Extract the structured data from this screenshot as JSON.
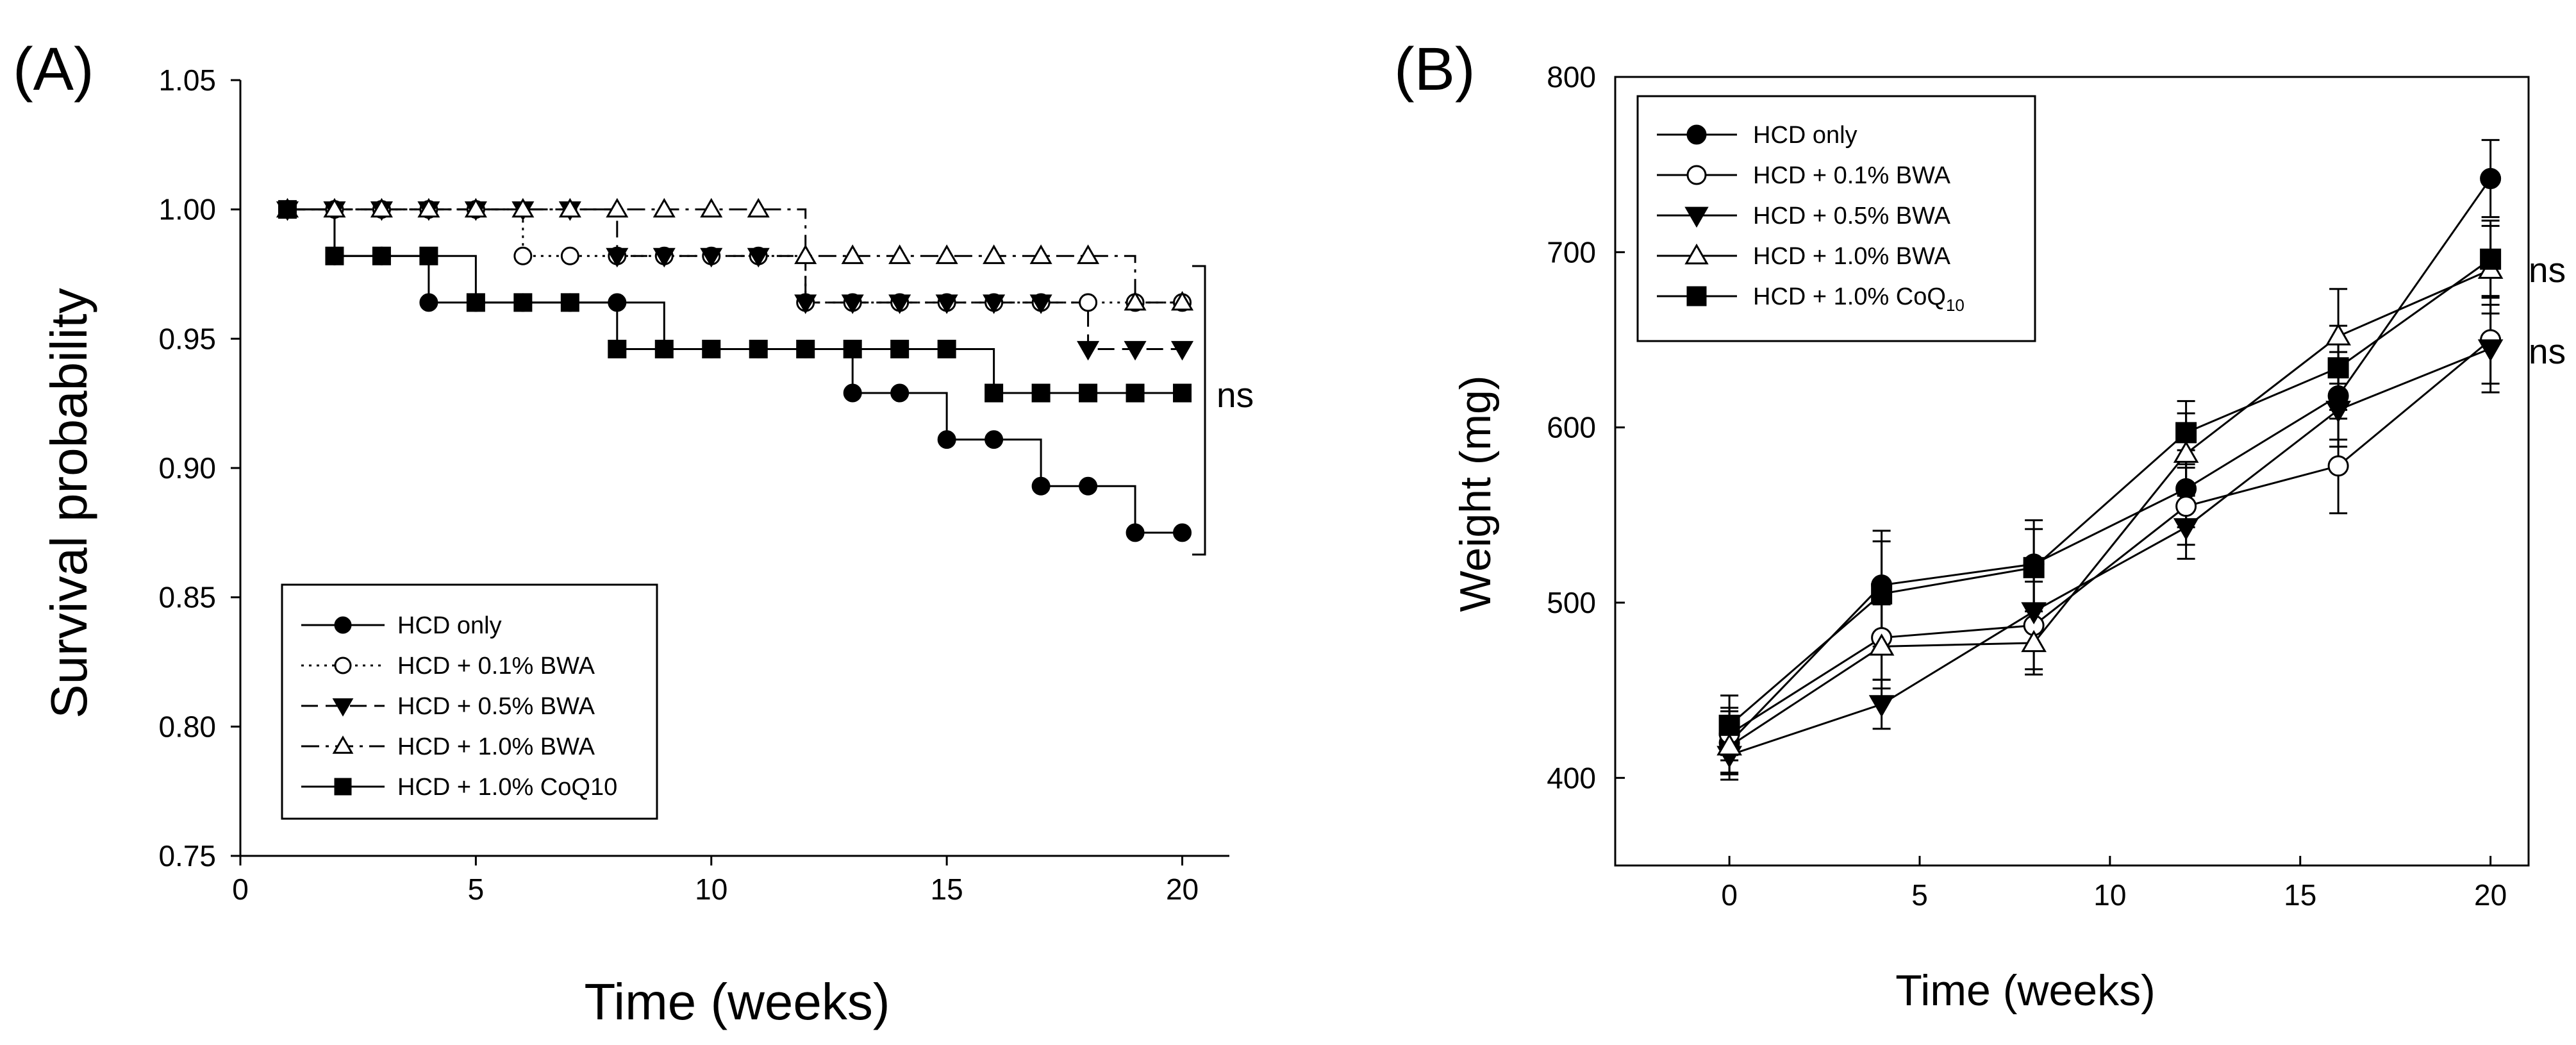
{
  "chart_data": [
    {
      "panel_label": "(A)",
      "type": "line",
      "step": true,
      "ylabel": "Survival probability",
      "xlabel": "Time (weeks)",
      "xlim": [
        0,
        21
      ],
      "ylim": [
        0.75,
        1.05
      ],
      "xticks": [
        "0",
        "5",
        "10",
        "15",
        "20"
      ],
      "yticks": [
        "0.75",
        "0.80",
        "0.85",
        "0.90",
        "0.95",
        "1.00",
        "1.05"
      ],
      "legend_placement": "bottom-left",
      "annotation": "ns",
      "series": [
        {
          "name": "HCD only",
          "marker": "filled-circle",
          "line_style": "solid",
          "x": [
            1,
            2,
            3,
            4,
            5,
            6,
            7,
            8,
            9,
            10,
            11,
            12,
            13,
            14,
            15,
            16,
            17,
            18,
            19,
            20
          ],
          "y": [
            1.0,
            0.982,
            0.982,
            0.964,
            0.964,
            0.964,
            0.964,
            0.964,
            0.946,
            0.946,
            0.946,
            0.946,
            0.929,
            0.929,
            0.911,
            0.911,
            0.893,
            0.893,
            0.875,
            0.875
          ]
        },
        {
          "name": "HCD + 0.1% BWA",
          "marker": "open-circle",
          "line_style": "dotted",
          "x": [
            1,
            2,
            3,
            4,
            5,
            6,
            7,
            8,
            9,
            10,
            11,
            12,
            13,
            14,
            15,
            16,
            17,
            18,
            19,
            20
          ],
          "y": [
            1.0,
            1.0,
            1.0,
            1.0,
            1.0,
            0.982,
            0.982,
            0.982,
            0.982,
            0.982,
            0.982,
            0.964,
            0.964,
            0.964,
            0.964,
            0.964,
            0.964,
            0.964,
            0.964,
            0.964
          ]
        },
        {
          "name": "HCD + 0.5% BWA",
          "marker": "filled-triangle-down",
          "line_style": "dashed",
          "x": [
            1,
            2,
            3,
            4,
            5,
            6,
            7,
            8,
            9,
            10,
            11,
            12,
            13,
            14,
            15,
            16,
            17,
            18,
            19,
            20
          ],
          "y": [
            1.0,
            1.0,
            1.0,
            1.0,
            1.0,
            1.0,
            1.0,
            0.982,
            0.982,
            0.982,
            0.982,
            0.964,
            0.964,
            0.964,
            0.964,
            0.964,
            0.964,
            0.946,
            0.946,
            0.946
          ]
        },
        {
          "name": "HCD + 1.0% BWA",
          "marker": "open-triangle-up",
          "line_style": "dash-dot",
          "x": [
            1,
            2,
            3,
            4,
            5,
            6,
            7,
            8,
            9,
            10,
            11,
            12,
            13,
            14,
            15,
            16,
            17,
            18,
            19,
            20
          ],
          "y": [
            1.0,
            1.0,
            1.0,
            1.0,
            1.0,
            1.0,
            1.0,
            1.0,
            1.0,
            1.0,
            1.0,
            0.982,
            0.982,
            0.982,
            0.982,
            0.982,
            0.982,
            0.982,
            0.964,
            0.964
          ]
        },
        {
          "name": "HCD + 1.0% CoQ10",
          "marker": "filled-square",
          "line_style": "solid",
          "x": [
            1,
            2,
            3,
            4,
            5,
            6,
            7,
            8,
            9,
            10,
            11,
            12,
            13,
            14,
            15,
            16,
            17,
            18,
            19,
            20
          ],
          "y": [
            1.0,
            0.982,
            0.982,
            0.982,
            0.964,
            0.964,
            0.964,
            0.946,
            0.946,
            0.946,
            0.946,
            0.946,
            0.946,
            0.946,
            0.946,
            0.929,
            0.929,
            0.929,
            0.929,
            0.929
          ]
        }
      ]
    },
    {
      "panel_label": "(B)",
      "type": "line",
      "ylabel": "Weight (mg)",
      "xlabel": "Time (weeks)",
      "xlim": [
        -3,
        21
      ],
      "ylim": [
        350,
        800
      ],
      "xticks": [
        "0",
        "5",
        "10",
        "15",
        "20"
      ],
      "yticks": [
        "400",
        "500",
        "600",
        "700",
        "800"
      ],
      "legend_placement": "top-left",
      "annotations": [
        "ns",
        "ns"
      ],
      "x": [
        0,
        4,
        8,
        12,
        16,
        20
      ],
      "series": [
        {
          "name": "HCD only",
          "marker": "filled-circle",
          "y": [
            420,
            510,
            522,
            565,
            618,
            742
          ],
          "err": [
            18,
            31,
            25,
            22,
            25,
            22
          ]
        },
        {
          "name": "HCD + 0.1% BWA",
          "marker": "open-circle",
          "y": [
            425,
            480,
            487,
            555,
            578,
            650
          ],
          "err": [
            15,
            24,
            25,
            22,
            27,
            25
          ]
        },
        {
          "name": "HCD + 0.5% BWA",
          "marker": "filled-triangle-down",
          "y": [
            413,
            442,
            495,
            543,
            610,
            645
          ],
          "err": [
            14,
            14,
            20,
            18,
            21,
            25
          ]
        },
        {
          "name": "HCD + 1.0% BWA",
          "marker": "open-triangle-up",
          "y": [
            418,
            475,
            477,
            585,
            652,
            690
          ],
          "err": [
            15,
            24,
            18,
            23,
            27,
            25
          ]
        },
        {
          "name": "HCD + 1.0% CoQ",
          "name_subscript": "10",
          "marker": "filled-square",
          "y": [
            430,
            505,
            520,
            597,
            634,
            696
          ],
          "err": [
            17,
            30,
            22,
            18,
            24,
            22
          ]
        }
      ]
    }
  ]
}
